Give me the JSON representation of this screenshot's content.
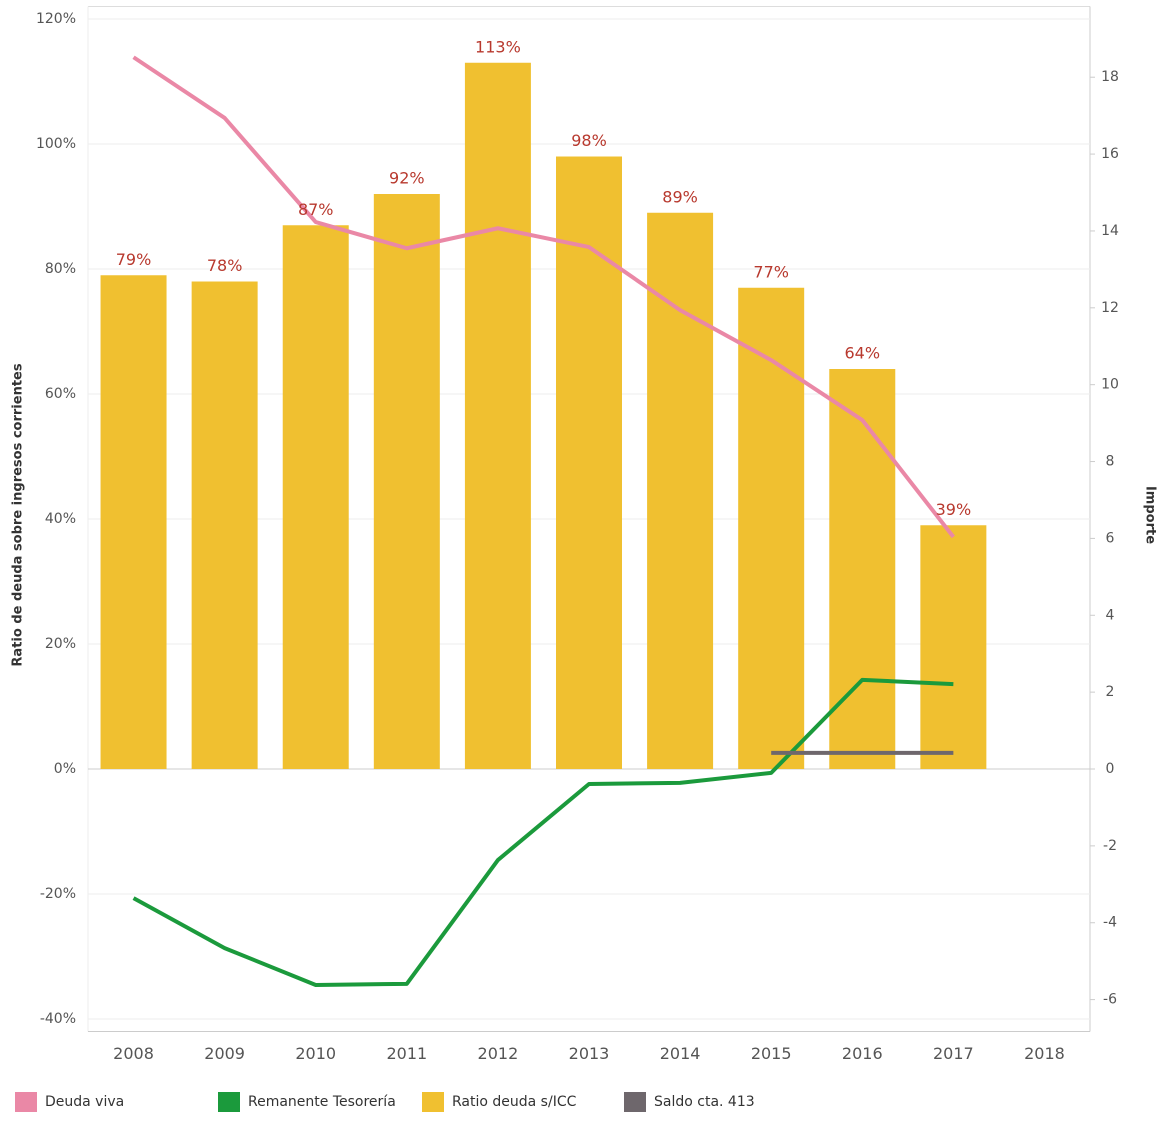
{
  "chart_data": {
    "type": "bar",
    "categories": [
      "2008",
      "2009",
      "2010",
      "2011",
      "2012",
      "2013",
      "2014",
      "2015",
      "2016",
      "2017",
      "2018"
    ],
    "series": [
      {
        "name": "Ratio deuda s/ICC",
        "type": "bar",
        "color": "#f0c030",
        "values": [
          79,
          78,
          87,
          92,
          113,
          98,
          89,
          77,
          64,
          39,
          null
        ],
        "value_labels": [
          "79%",
          "78%",
          "87%",
          "92%",
          "113%",
          "98%",
          "89%",
          "77%",
          "64%",
          "39%",
          null
        ]
      },
      {
        "name": "Deuda viva",
        "type": "line",
        "axis": "y2",
        "color": "#ea88a6",
        "values": [
          18.52,
          16.94,
          14.23,
          13.55,
          14.07,
          13.58,
          11.94,
          10.64,
          9.08,
          6.04,
          null
        ]
      },
      {
        "name": "Remanente Tesorería",
        "type": "line",
        "axis": "y2",
        "color": "#1b9a3c",
        "values": [
          -3.36,
          -4.66,
          -5.62,
          -5.59,
          -2.37,
          -0.39,
          -0.36,
          -0.1,
          2.32,
          2.21,
          null
        ]
      },
      {
        "name": "Saldo cta. 413",
        "type": "line",
        "axis": "y2",
        "color": "#6e676c",
        "values": [
          null,
          null,
          null,
          null,
          null,
          null,
          null,
          0.42,
          0.42,
          0.42,
          null
        ]
      }
    ],
    "ylabel": "Ratio de deuda sobre ingresos corrientes",
    "y2label": "Importe",
    "ylim": [
      -42,
      122
    ],
    "yticks": [
      {
        "value": -40,
        "label": "-40%"
      },
      {
        "value": -20,
        "label": "-20%"
      },
      {
        "value": 0,
        "label": "0%"
      },
      {
        "value": 20,
        "label": "20%"
      },
      {
        "value": 40,
        "label": "40%"
      },
      {
        "value": 60,
        "label": "60%"
      },
      {
        "value": 80,
        "label": "80%"
      },
      {
        "value": 100,
        "label": "100%"
      },
      {
        "value": 120,
        "label": "120%"
      }
    ],
    "y2lim": [
      -6.83,
      19.84
    ],
    "y2ticks": [
      -6,
      -4,
      -2,
      0,
      2,
      4,
      6,
      8,
      10,
      12,
      14,
      16,
      18
    ],
    "grid": true,
    "legend": "bottom"
  }
}
